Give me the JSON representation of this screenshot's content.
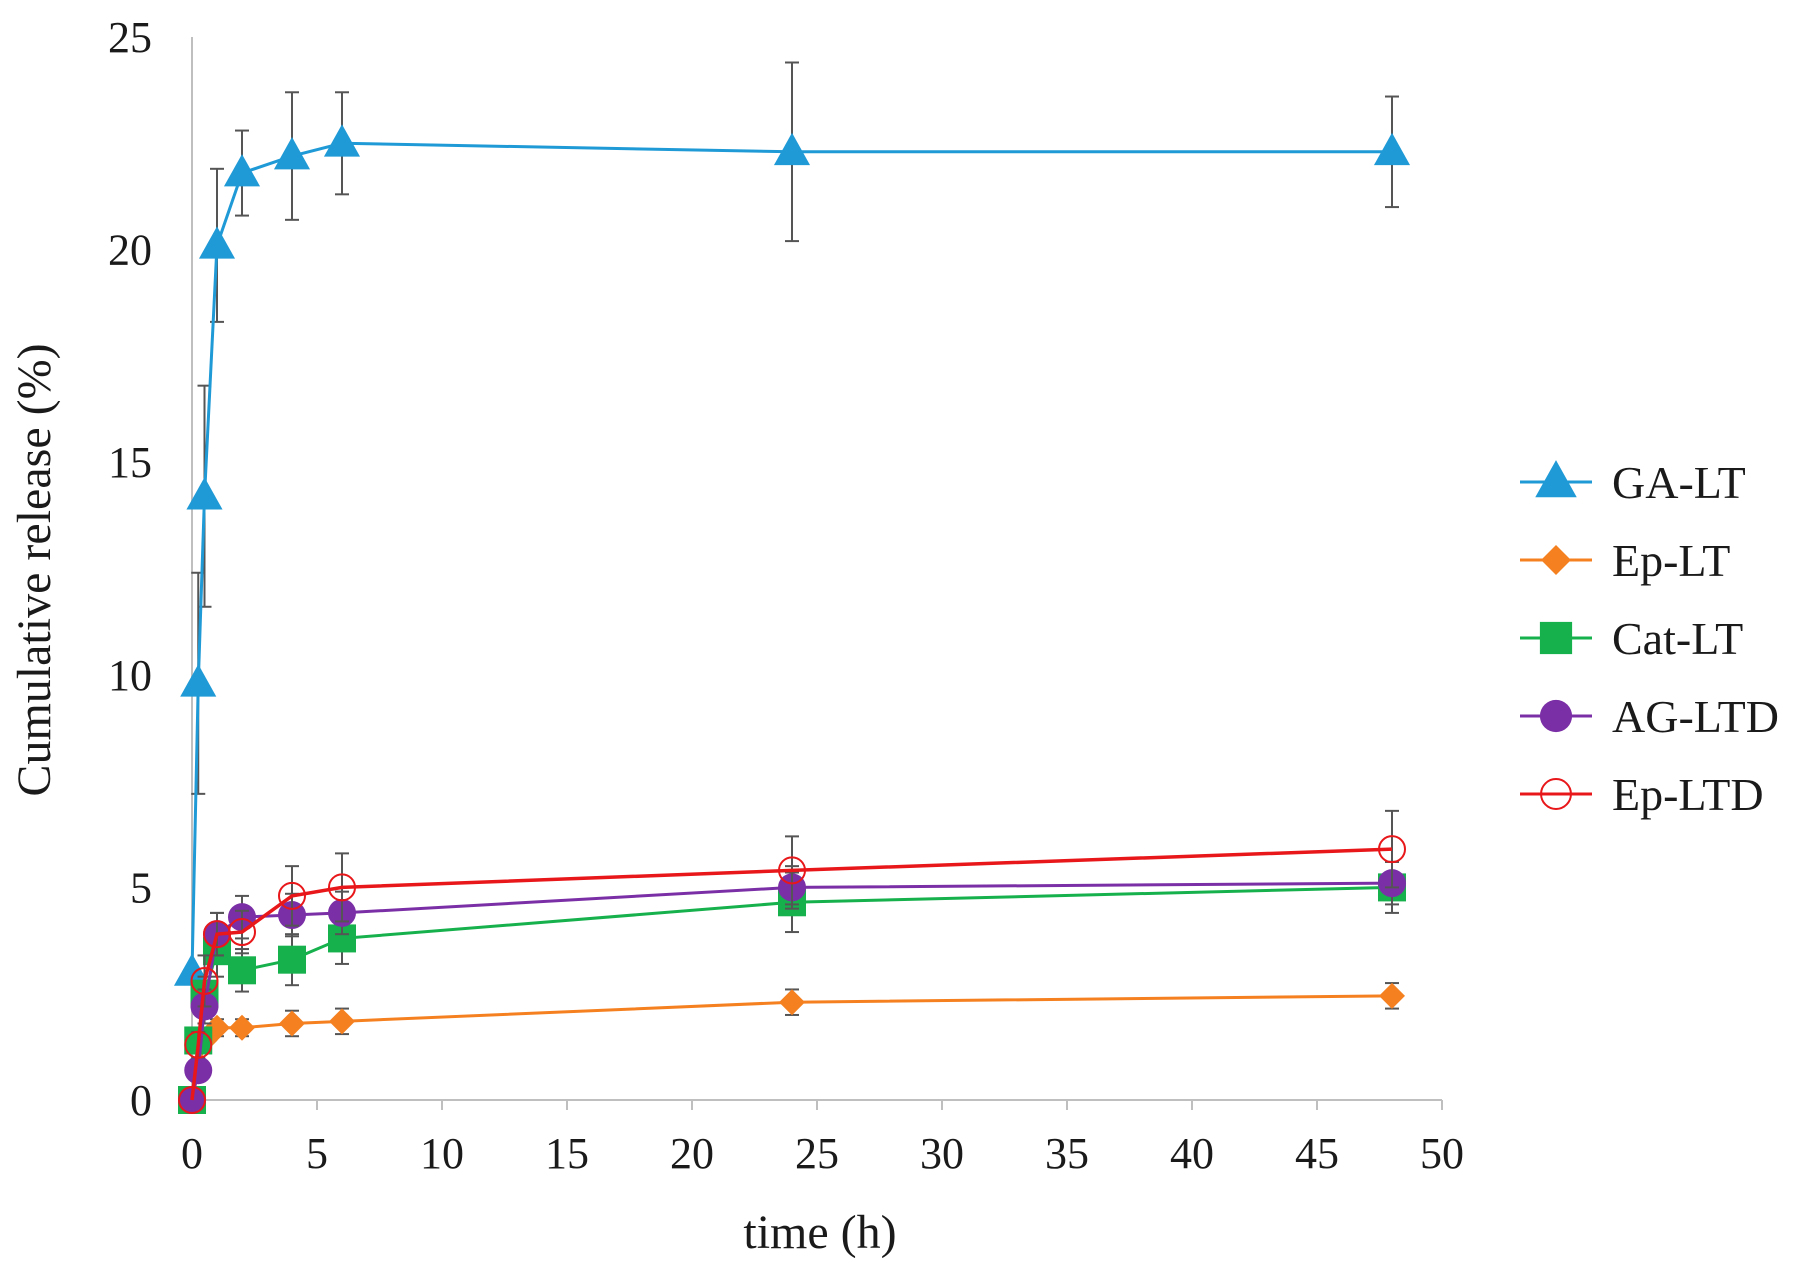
{
  "chart_data": {
    "type": "line",
    "title": "",
    "xlabel": "time (h)",
    "ylabel": "Cumulative release (%)",
    "xlim": [
      0,
      50
    ],
    "ylim": [
      0,
      25
    ],
    "xticks": [
      0,
      5,
      10,
      15,
      20,
      25,
      30,
      35,
      40,
      45,
      50
    ],
    "yticks": [
      0,
      5,
      10,
      15,
      20,
      25
    ],
    "grid": false,
    "legend_position": "right",
    "series": [
      {
        "name": "GA-LT",
        "color": "#1f9ad6",
        "marker": "triangle",
        "x": [
          0,
          0.25,
          0.5,
          1,
          2,
          4,
          6,
          24,
          48
        ],
        "y": [
          3.0,
          9.8,
          14.2,
          20.1,
          21.8,
          22.2,
          22.5,
          22.3,
          22.3
        ],
        "err": [
          0,
          2.6,
          2.6,
          1.8,
          1.0,
          1.5,
          1.2,
          2.1,
          1.3
        ]
      },
      {
        "name": "Ep-LT",
        "color": "#f5801f",
        "marker": "diamond",
        "x": [
          0,
          0.25,
          0.5,
          1,
          2,
          4,
          6,
          24,
          48
        ],
        "y": [
          0,
          0.7,
          1.4,
          1.7,
          1.7,
          1.8,
          1.85,
          2.3,
          2.45
        ],
        "err": [
          0,
          0.15,
          0.2,
          0.2,
          0.2,
          0.3,
          0.3,
          0.3,
          0.3
        ]
      },
      {
        "name": "Cat-LT",
        "color": "#16b04d",
        "marker": "square",
        "x": [
          0,
          0.25,
          0.5,
          1,
          2,
          4,
          6,
          24,
          48
        ],
        "y": [
          0,
          1.4,
          2.5,
          3.5,
          3.05,
          3.3,
          3.8,
          4.65,
          5.0
        ],
        "err": [
          0,
          0.3,
          0.4,
          0.6,
          0.5,
          0.6,
          0.6,
          0.7,
          0.6
        ]
      },
      {
        "name": "AG-LTD",
        "color": "#7b2fa6",
        "marker": "circle",
        "x": [
          0,
          0.25,
          0.5,
          1,
          2,
          4,
          6,
          24,
          48
        ],
        "y": [
          0,
          0.7,
          2.2,
          3.9,
          4.3,
          4.35,
          4.4,
          5.0,
          5.1
        ],
        "err": [
          0,
          0.2,
          0.4,
          0.5,
          0.5,
          0.5,
          0.5,
          0.5,
          0.5
        ]
      },
      {
        "name": "Ep-LTD",
        "color": "#e8171a",
        "marker": "open-circle",
        "x": [
          0,
          0.25,
          0.5,
          1,
          2,
          4,
          6,
          24,
          48
        ],
        "y": [
          0,
          1.3,
          2.8,
          3.9,
          3.95,
          4.8,
          5.0,
          5.4,
          5.9
        ],
        "err": [
          0,
          0.3,
          0.6,
          0.5,
          0.5,
          0.7,
          0.8,
          0.8,
          0.9
        ]
      }
    ]
  }
}
